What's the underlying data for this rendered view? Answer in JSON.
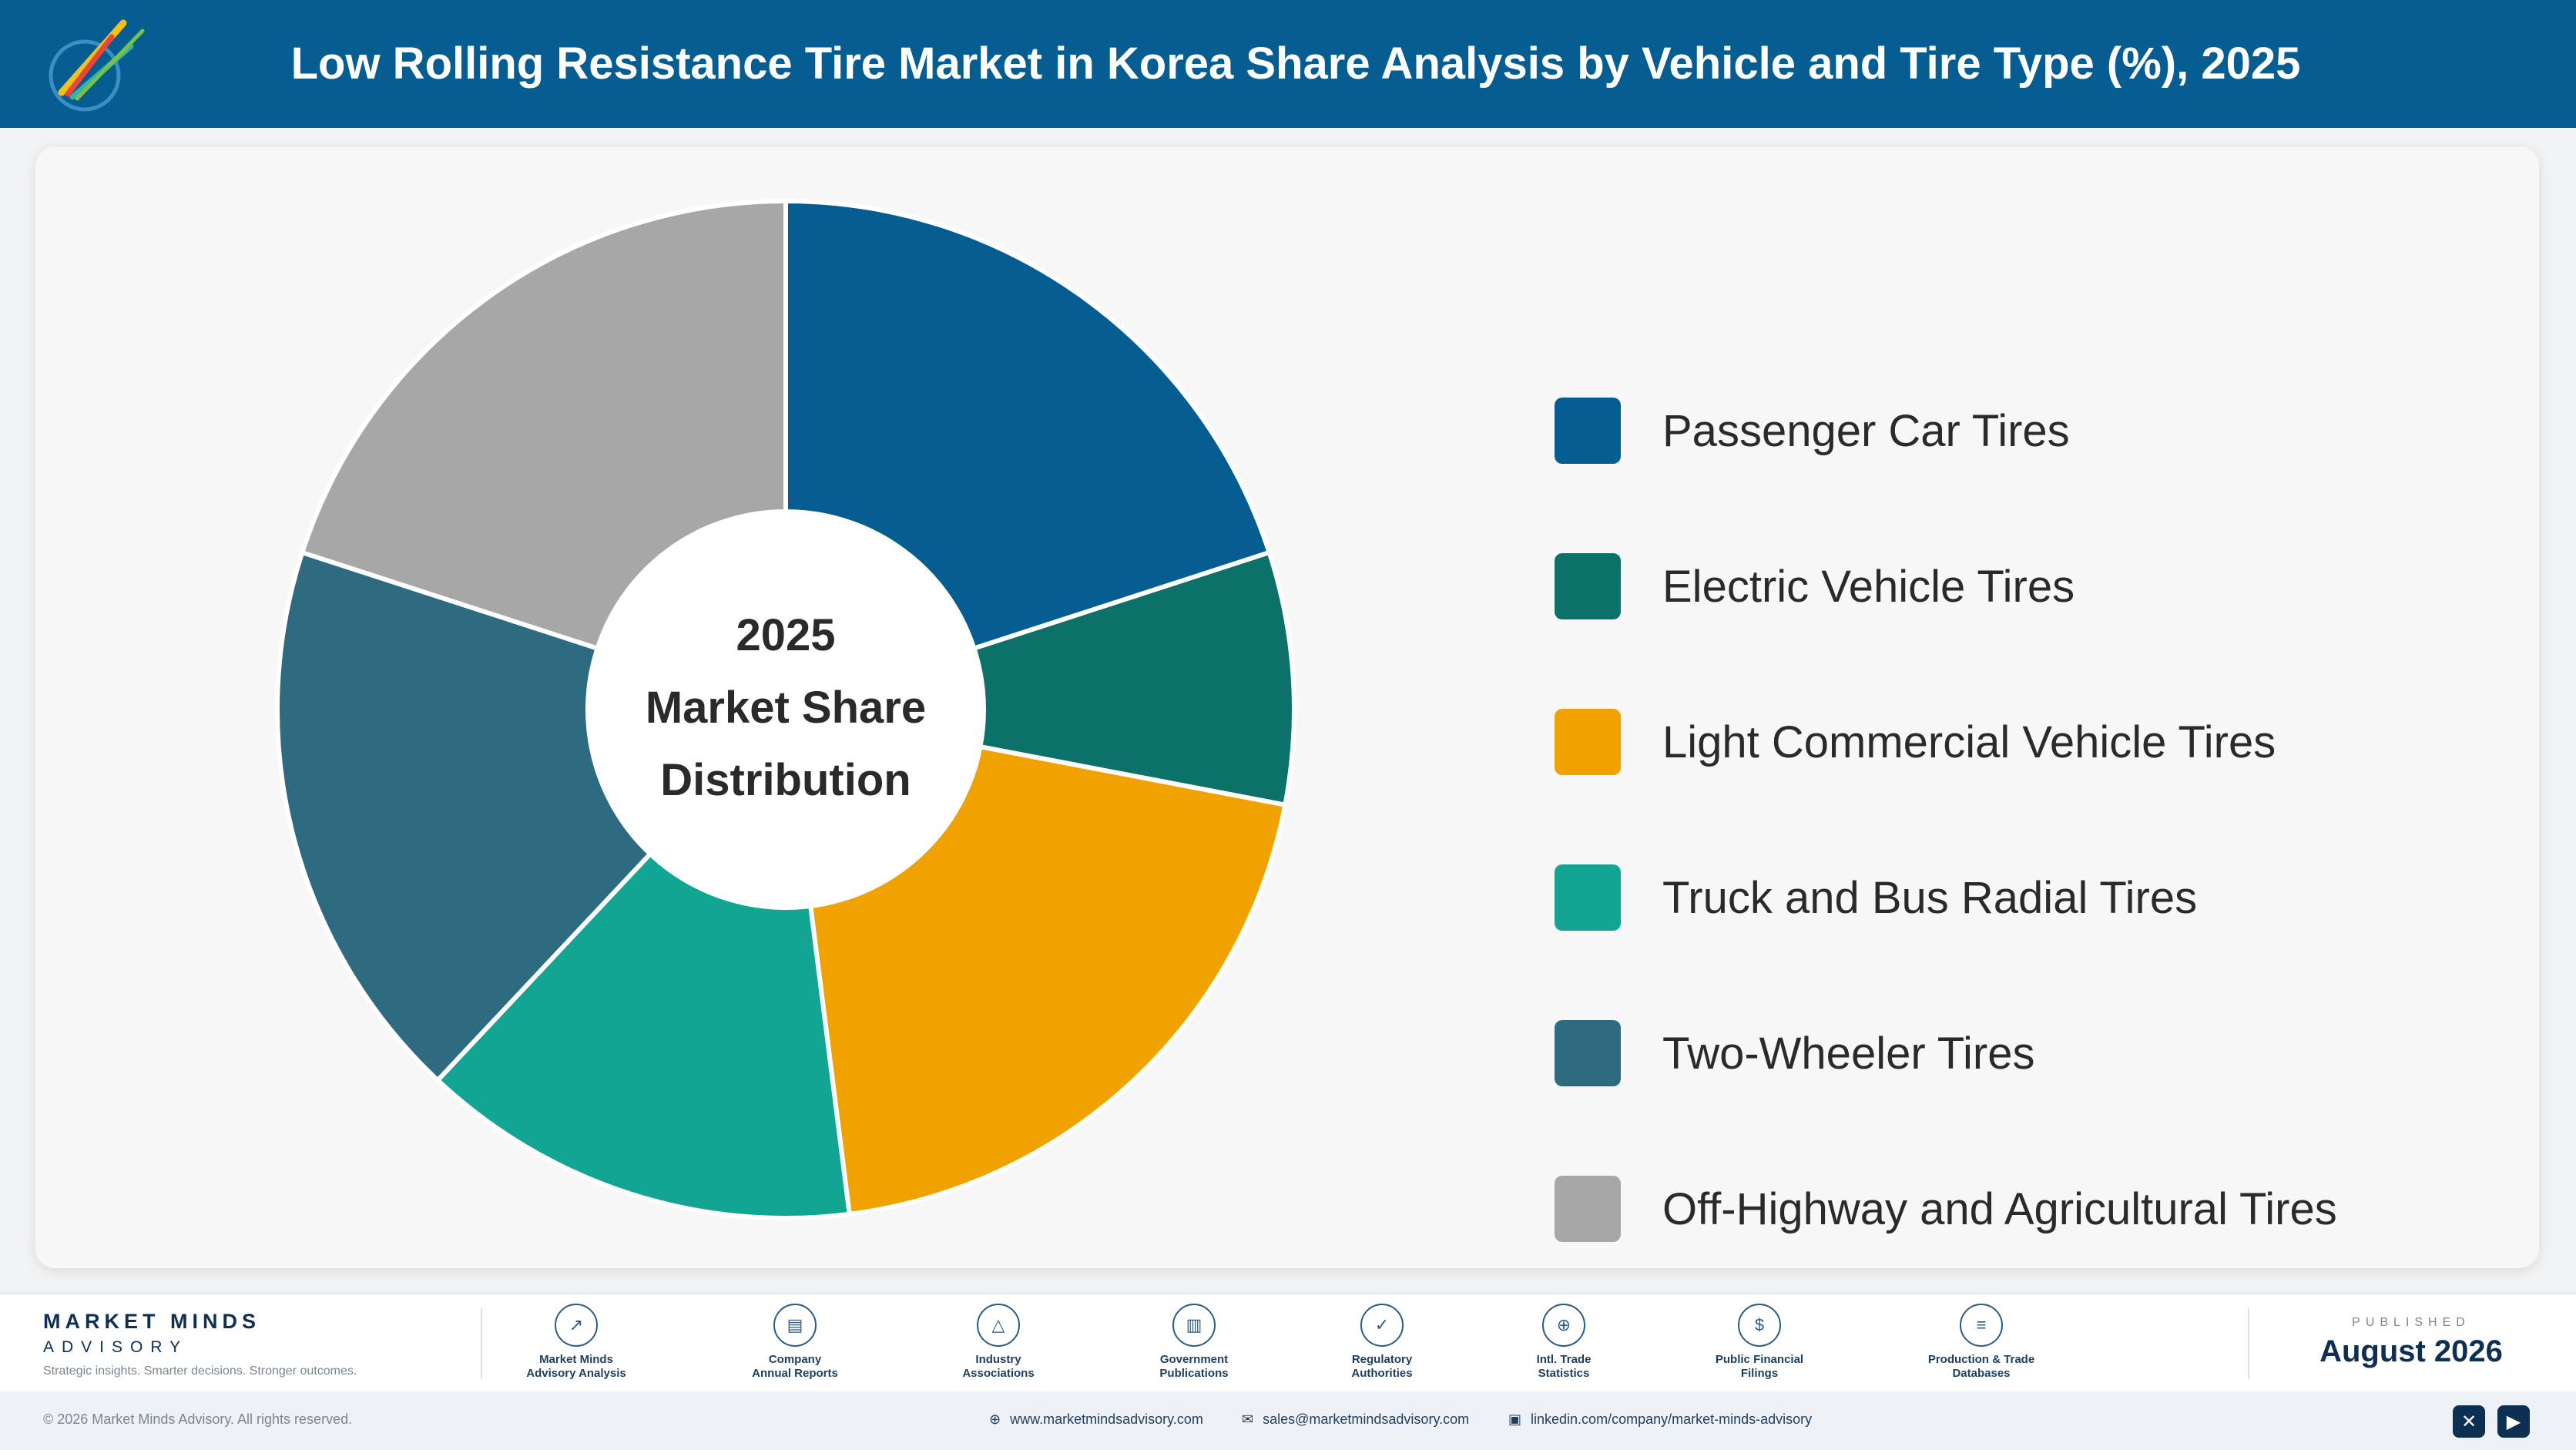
{
  "header": {
    "title": "Low Rolling Resistance Tire Market in Korea Share Analysis by Vehicle and Tire Type (%), 2025",
    "logo_caption": "Market Minds Advisory"
  },
  "chart_data": {
    "type": "pie",
    "variant": "donut",
    "center_text": [
      "2025",
      "Market Share",
      "Distribution"
    ],
    "categories": [
      "Passenger Car Tires",
      "Electric Vehicle Tires",
      "Light Commercial Vehicle Tires",
      "Truck and Bus Radial Tires",
      "Two-Wheeler Tires",
      "Off-Highway and Agricultural Tires"
    ],
    "values": [
      20,
      8,
      20,
      14,
      18,
      20
    ],
    "colors": [
      "#065d91",
      "#0b7169",
      "#f0a201",
      "#12a593",
      "#2e6b80",
      "#a7a7a7"
    ],
    "legend_position": "right",
    "data_labels": false
  },
  "footer": {
    "brand_name": "MARKET MINDS",
    "brand_sub": "ADVISORY",
    "tagline": "Strategic insights. Smarter decisions. Stronger outcomes.",
    "sources": [
      {
        "label": "Market Minds\nAdvisory Analysis",
        "icon": "chart-line-icon",
        "glyph": "↗"
      },
      {
        "label": "Company\nAnnual Reports",
        "icon": "document-icon",
        "glyph": "▤"
      },
      {
        "label": "Industry\nAssociations",
        "icon": "network-icon",
        "glyph": "△"
      },
      {
        "label": "Government\nPublications",
        "icon": "government-building-icon",
        "glyph": "▥"
      },
      {
        "label": "Regulatory\nAuthorities",
        "icon": "shield-check-icon",
        "glyph": "✓"
      },
      {
        "label": "Intl. Trade\nStatistics",
        "icon": "globe-icon",
        "glyph": "⊕"
      },
      {
        "label": "Public Financial\nFilings",
        "icon": "dollar-coin-icon",
        "glyph": "$"
      },
      {
        "label": "Production & Trade\nDatabases",
        "icon": "database-icon",
        "glyph": "≡"
      }
    ],
    "published_label": "PUBLISHED",
    "published_date": "August 2026"
  },
  "bottom": {
    "copyright": "© 2026 Market Minds Advisory. All rights reserved.",
    "website": "www.marketmindsadvisory.com",
    "email": "sales@marketmindsadvisory.com",
    "linkedin": "linkedin.com/company/market-minds-advisory"
  }
}
